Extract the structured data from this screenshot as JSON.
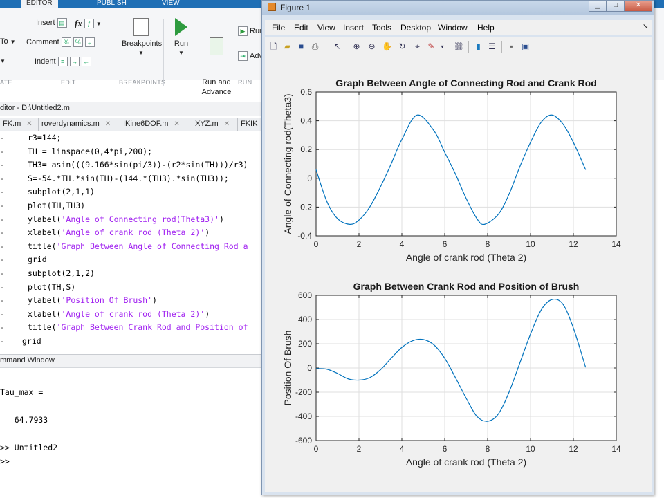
{
  "toolstrip": {
    "tabs": [
      "EDITOR",
      "PUBLISH",
      "VIEW"
    ],
    "to_label": "To",
    "insert_label": "Insert",
    "comment_label": "Comment",
    "indent_label": "Indent",
    "fx_label": "fx",
    "breakpoints_label": "Breakpoints",
    "run_label": "Run",
    "run_advance_label": "Run and\nAdvance",
    "run_section_label": "Run",
    "advance_label": "Adv",
    "sections": [
      "ATE",
      "EDIT",
      "BREAKPOINTS",
      "RUN"
    ]
  },
  "editor": {
    "title": "ditor - D:\\Untitled2.m",
    "tabs": [
      "FK.m",
      "roverdynamics.m",
      "IKine6DOF.m",
      "XYZ.m",
      "FKIK"
    ],
    "lines": [
      {
        "code": "r3=144;"
      },
      {
        "code": "TH = linspace(0,4*pi,200);"
      },
      {
        "code": "TH3= asin(((9.166*sin(pi/3))-(r2*sin(TH)))/r3)"
      },
      {
        "code": "S=-54.*TH.*sin(TH)-(144.*(TH3).*sin(TH3));"
      },
      {
        "code": "subplot(2,1,1)"
      },
      {
        "code": "plot(TH,TH3)"
      },
      {
        "pre": "ylabel(",
        "str": "'Angle of Connecting rod(Theta3)'",
        "post": ")"
      },
      {
        "pre": "xlabel(",
        "str": "'Angle of crank rod (Theta 2)'",
        "post": ")"
      },
      {
        "pre": "title(",
        "str": "'Graph Between Angle of Connecting Rod a",
        "post": ""
      },
      {
        "code": "grid"
      },
      {
        "code": "subplot(2,1,2)"
      },
      {
        "code": "plot(TH,S)"
      },
      {
        "pre": "ylabel(",
        "str": "'Position Of Brush'",
        "post": ")"
      },
      {
        "pre": "xlabel(",
        "str": "'Angle of crank rod (Theta 2)'",
        "post": ")"
      },
      {
        "pre": "title(",
        "str": "'Graph Between Crank Rod and Position of",
        "post": ""
      },
      {
        "code": "grid",
        "indent": "out"
      }
    ]
  },
  "command_window": {
    "title": "mmand Window",
    "lines": [
      "Tau_max =",
      "",
      "   64.7933",
      "",
      ">> Untitled2",
      ">>"
    ]
  },
  "figure": {
    "title": "Figure 1",
    "menus": [
      "File",
      "Edit",
      "View",
      "Insert",
      "Tools",
      "Desktop",
      "Window",
      "Help"
    ],
    "toolbar_icons": [
      "new-file-icon",
      "open-file-icon",
      "save-icon",
      "print-icon",
      "pointer-icon",
      "zoom-in-icon",
      "zoom-out-icon",
      "pan-icon",
      "rotate-icon",
      "data-cursor-icon",
      "brush-icon",
      "link-icon",
      "colorbar-icon",
      "legend-icon",
      "hide-tools-icon",
      "dock-icon"
    ],
    "window_buttons": [
      "minimize",
      "maximize",
      "close"
    ]
  },
  "chart_data": [
    {
      "type": "line",
      "title": "Graph Between Angle of Connecting Rod and Crank Rod",
      "xlabel": "Angle of crank rod (Theta 2)",
      "ylabel": "Angle of Connecting rod(Theta3)",
      "xlim": [
        0,
        14
      ],
      "ylim": [
        -0.4,
        0.6
      ],
      "xticks": [
        0,
        2,
        4,
        6,
        8,
        10,
        12,
        14
      ],
      "yticks": [
        -0.4,
        -0.2,
        0,
        0.2,
        0.4,
        0.6
      ],
      "ytick_labels": [
        "-0.4",
        "-0.2",
        "0",
        "0.2",
        "0.4",
        "0.6"
      ],
      "grid": true,
      "color": "#0072bd",
      "x": [
        0,
        0.5,
        1.0,
        1.57,
        2.0,
        2.5,
        3.0,
        3.5,
        4.0,
        4.71,
        5.5,
        6.0,
        6.5,
        7.0,
        7.5,
        7.85,
        8.5,
        9.0,
        9.5,
        10.0,
        10.5,
        10.99,
        11.5,
        12.0,
        12.57
      ],
      "y": [
        0.06,
        -0.16,
        -0.28,
        -0.32,
        -0.29,
        -0.2,
        -0.06,
        0.1,
        0.27,
        0.44,
        0.33,
        0.18,
        0.03,
        -0.14,
        -0.28,
        -0.32,
        -0.25,
        -0.11,
        0.08,
        0.25,
        0.39,
        0.44,
        0.38,
        0.25,
        0.06
      ]
    },
    {
      "type": "line",
      "title": "Graph Between Crank Rod and Position of Brush",
      "xlabel": "Angle of crank rod (Theta 2)",
      "ylabel": "Position Of Brush",
      "xlim": [
        0,
        14
      ],
      "ylim": [
        -600,
        600
      ],
      "xticks": [
        0,
        2,
        4,
        6,
        8,
        10,
        12,
        14
      ],
      "yticks": [
        -600,
        -400,
        -200,
        0,
        200,
        400,
        600
      ],
      "ytick_labels": [
        "-600",
        "-400",
        "-200",
        "0",
        "200",
        "400",
        "600"
      ],
      "grid": true,
      "color": "#0072bd",
      "x": [
        0,
        0.5,
        1.0,
        1.5,
        2.0,
        2.5,
        3.0,
        3.5,
        4.0,
        4.5,
        5.0,
        5.5,
        6.0,
        6.5,
        7.0,
        7.5,
        8.0,
        8.5,
        9.0,
        9.5,
        10.0,
        10.5,
        11.0,
        11.5,
        12.0,
        12.57
      ],
      "y": [
        -5,
        -10,
        -45,
        -90,
        -100,
        -80,
        -15,
        80,
        170,
        225,
        235,
        190,
        80,
        -80,
        -250,
        -400,
        -440,
        -380,
        -200,
        40,
        280,
        480,
        565,
        530,
        330,
        5
      ]
    }
  ]
}
